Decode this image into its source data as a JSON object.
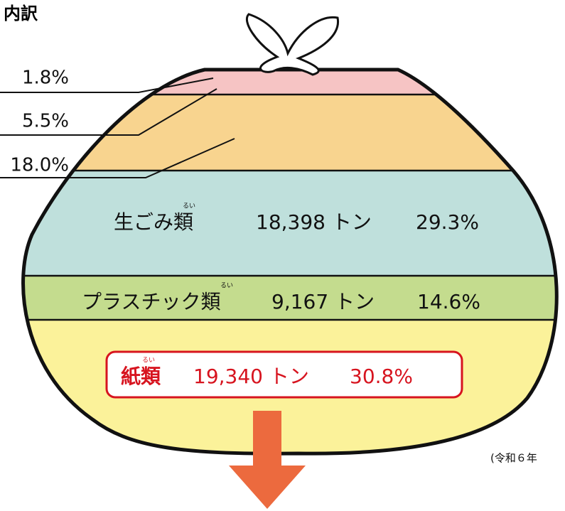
{
  "heading": "内訳",
  "leaders": [
    "1.8%",
    "5.5%",
    "18.0%"
  ],
  "layers": [
    {
      "name": "生ごみ類",
      "ruby": "るい",
      "amount": "18,398 トン",
      "share": "29.3%"
    },
    {
      "name": "プラスチック類",
      "ruby": "るい",
      "amount": "9,167 トン",
      "share": "14.6%"
    },
    {
      "name": "紙類",
      "ruby": "るい",
      "amount": "19,340 トン",
      "share": "30.8%"
    }
  ],
  "note": "(令和６年"
}
